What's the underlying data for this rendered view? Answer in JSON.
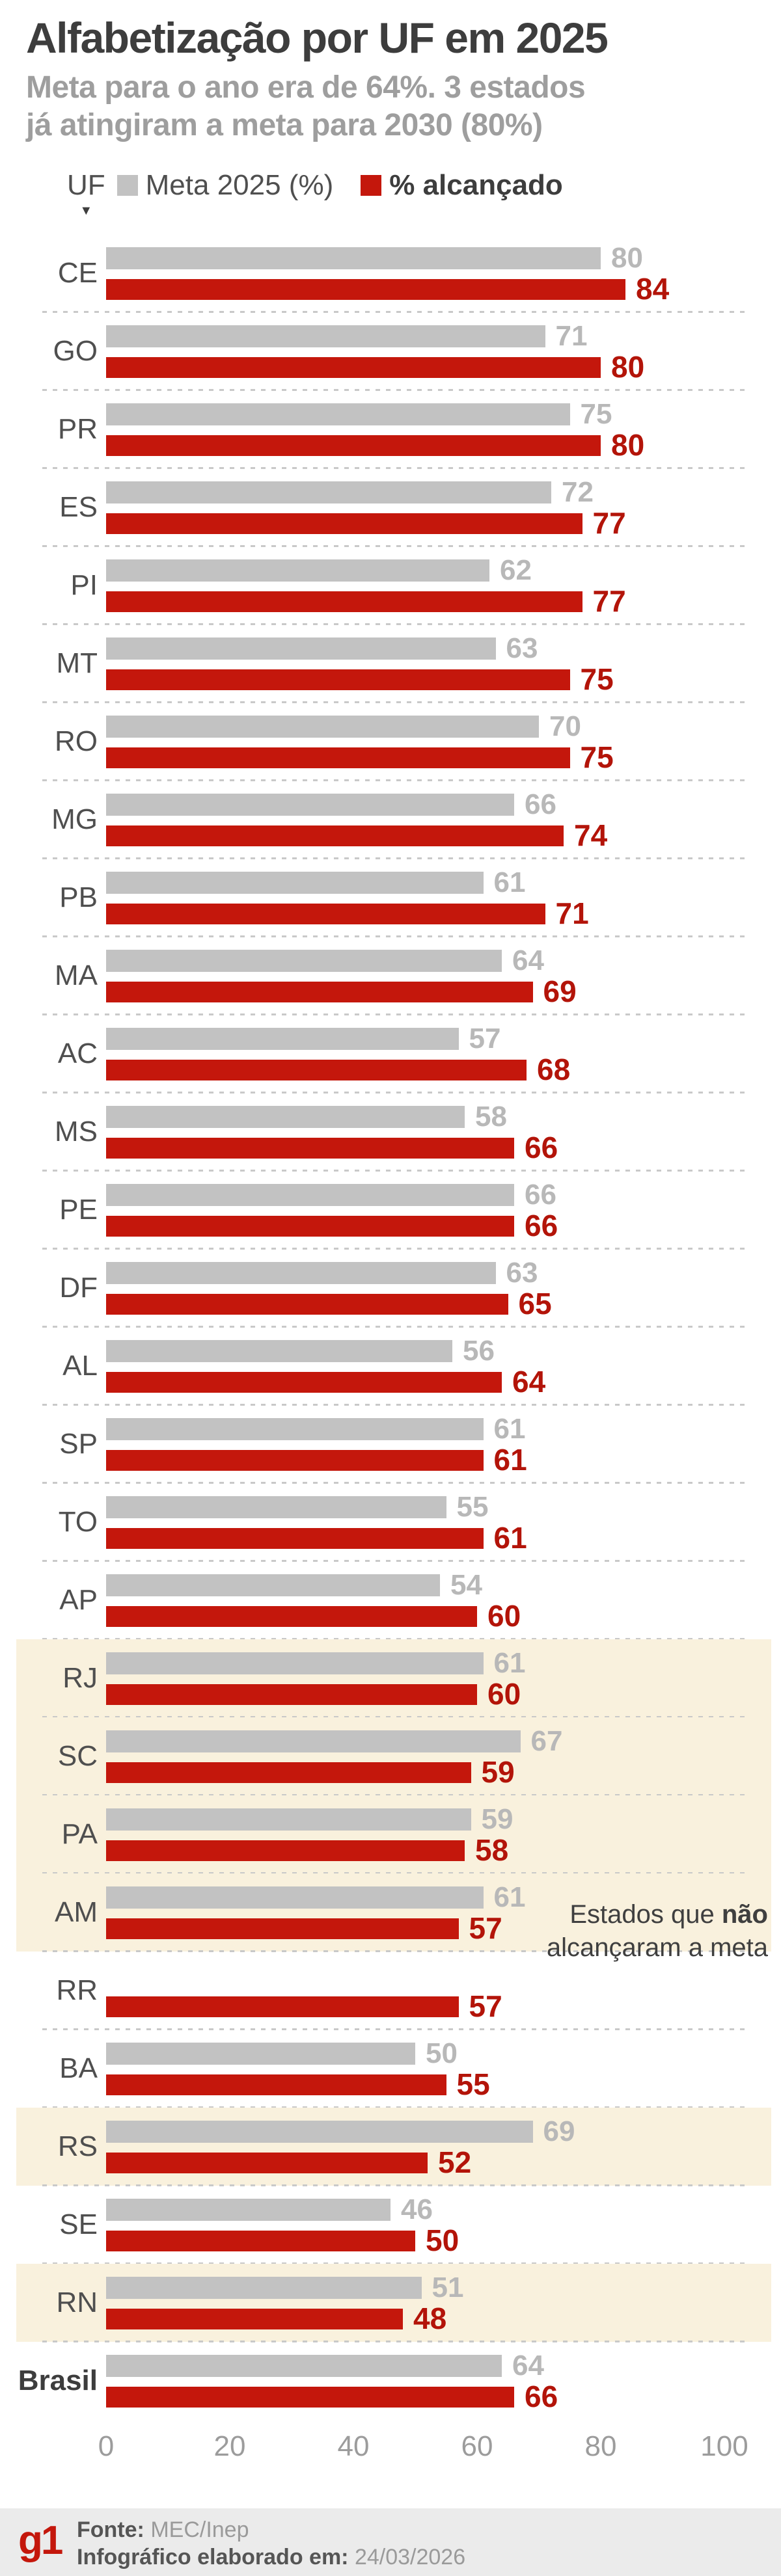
{
  "header": {
    "title": "Alfabetização por UF em 2025",
    "subtitle_line1": "Meta para o ano era de 64%. 3 estados",
    "subtitle_line2": "já atingiram a meta para 2030 (80%)"
  },
  "legend": {
    "uf_label": "UF",
    "uf_marker": "▼",
    "meta_label": "Meta 2025 (%)",
    "achieved_label": "% alcançado"
  },
  "annotation": {
    "line1_prefix": "Estados que",
    "line1_bold": "não",
    "line2": "alcançaram a meta"
  },
  "colors": {
    "meta_bar": "#c2c2c2",
    "achieved_bar": "#c4170c",
    "highlight_background": "#f9f1dd",
    "footer_background": "#ebebeb",
    "logo_red": "#c4170c"
  },
  "footer": {
    "logo": "g1",
    "source_label": "Fonte:",
    "source_value": "MEC/Inep",
    "date_label": "Infográfico elaborado em:",
    "date_value": "24/03/2026"
  },
  "chart_data": {
    "type": "bar",
    "orientation": "horizontal",
    "xlim": [
      0,
      100
    ],
    "axis_ticks": [
      0,
      20,
      40,
      60,
      80,
      100
    ],
    "grid": false,
    "legend_position": "top",
    "series": [
      {
        "name": "Meta 2025 (%)",
        "color": "#c2c2c2"
      },
      {
        "name": "% alcançado",
        "color": "#c4170c"
      }
    ],
    "highlight_meaning": "Estados que não alcançaram a meta",
    "rows": [
      {
        "uf": "CE",
        "meta": 80,
        "achieved": 84,
        "highlight": false
      },
      {
        "uf": "GO",
        "meta": 71,
        "achieved": 80,
        "highlight": false
      },
      {
        "uf": "PR",
        "meta": 75,
        "achieved": 80,
        "highlight": false
      },
      {
        "uf": "ES",
        "meta": 72,
        "achieved": 77,
        "highlight": false
      },
      {
        "uf": "PI",
        "meta": 62,
        "achieved": 77,
        "highlight": false
      },
      {
        "uf": "MT",
        "meta": 63,
        "achieved": 75,
        "highlight": false
      },
      {
        "uf": "RO",
        "meta": 70,
        "achieved": 75,
        "highlight": false
      },
      {
        "uf": "MG",
        "meta": 66,
        "achieved": 74,
        "highlight": false
      },
      {
        "uf": "PB",
        "meta": 61,
        "achieved": 71,
        "highlight": false
      },
      {
        "uf": "MA",
        "meta": 64,
        "achieved": 69,
        "highlight": false
      },
      {
        "uf": "AC",
        "meta": 57,
        "achieved": 68,
        "highlight": false
      },
      {
        "uf": "MS",
        "meta": 58,
        "achieved": 66,
        "highlight": false
      },
      {
        "uf": "PE",
        "meta": 66,
        "achieved": 66,
        "highlight": false
      },
      {
        "uf": "DF",
        "meta": 63,
        "achieved": 65,
        "highlight": false
      },
      {
        "uf": "AL",
        "meta": 56,
        "achieved": 64,
        "highlight": false
      },
      {
        "uf": "SP",
        "meta": 61,
        "achieved": 61,
        "highlight": false
      },
      {
        "uf": "TO",
        "meta": 55,
        "achieved": 61,
        "highlight": false
      },
      {
        "uf": "AP",
        "meta": 54,
        "achieved": 60,
        "highlight": false
      },
      {
        "uf": "RJ",
        "meta": 61,
        "achieved": 60,
        "highlight": true
      },
      {
        "uf": "SC",
        "meta": 67,
        "achieved": 59,
        "highlight": true
      },
      {
        "uf": "PA",
        "meta": 59,
        "achieved": 58,
        "highlight": true
      },
      {
        "uf": "AM",
        "meta": 61,
        "achieved": 57,
        "highlight": true
      },
      {
        "uf": "RR",
        "meta": null,
        "achieved": 57,
        "highlight": false
      },
      {
        "uf": "BA",
        "meta": 50,
        "achieved": 55,
        "highlight": false
      },
      {
        "uf": "RS",
        "meta": 69,
        "achieved": 52,
        "highlight": true
      },
      {
        "uf": "SE",
        "meta": 46,
        "achieved": 50,
        "highlight": false
      },
      {
        "uf": "RN",
        "meta": 51,
        "achieved": 48,
        "highlight": true
      },
      {
        "uf": "Brasil",
        "meta": 64,
        "achieved": 66,
        "highlight": false,
        "bold": true
      }
    ]
  }
}
